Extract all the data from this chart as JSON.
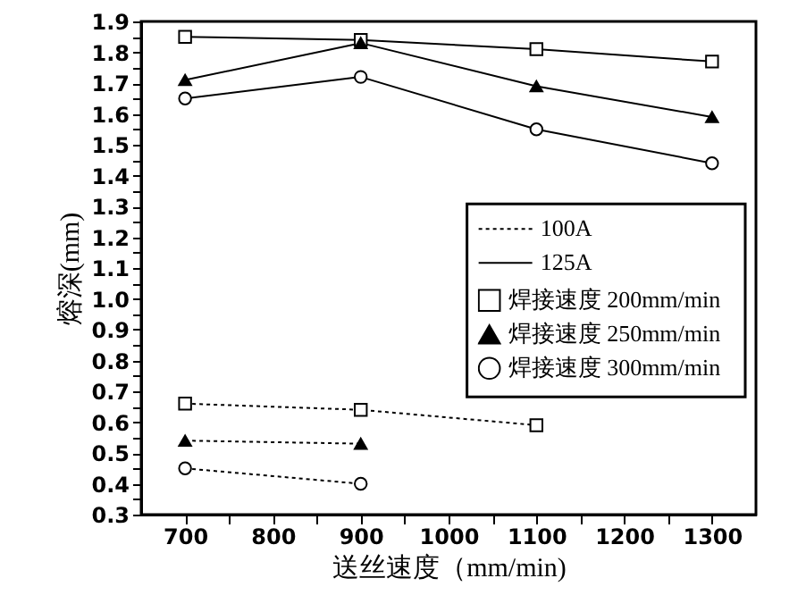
{
  "chart_data": {
    "type": "line",
    "xlabel": "送丝速度（mm/min)",
    "ylabel": "熔深(mm)",
    "xlim": [
      650,
      1350
    ],
    "ylim": [
      0.3,
      1.9
    ],
    "xticks": [
      700,
      {
        "value": 750,
        "label": null
      },
      800,
      {
        "value": 850,
        "label": null
      },
      900,
      {
        "value": 950,
        "label": null
      },
      1000,
      {
        "value": 1050,
        "label": null
      },
      1100,
      {
        "value": 1150,
        "label": null
      },
      1200,
      {
        "value": 1250,
        "label": null
      },
      1300
    ],
    "yticks": [
      {
        "value": 0.3,
        "label": "0.3"
      },
      {
        "value": 0.35,
        "label": null
      },
      {
        "value": 0.4,
        "label": "0.4"
      },
      {
        "value": 0.45,
        "label": null
      },
      {
        "value": 0.5,
        "label": "0.5"
      },
      {
        "value": 0.55,
        "label": null
      },
      {
        "value": 0.6,
        "label": "0.6"
      },
      {
        "value": 0.65,
        "label": null
      },
      {
        "value": 0.7,
        "label": "0.7"
      },
      {
        "value": 0.75,
        "label": null
      },
      {
        "value": 0.8,
        "label": "0.8"
      },
      {
        "value": 0.85,
        "label": null
      },
      {
        "value": 0.9,
        "label": "0.9"
      },
      {
        "value": 0.95,
        "label": null
      },
      {
        "value": 1.0,
        "label": "1.0"
      },
      {
        "value": 1.05,
        "label": null
      },
      {
        "value": 1.1,
        "label": "1.1"
      },
      {
        "value": 1.15,
        "label": null
      },
      {
        "value": 1.2,
        "label": "1.2"
      },
      {
        "value": 1.25,
        "label": null
      },
      {
        "value": 1.3,
        "label": "1.3"
      },
      {
        "value": 1.35,
        "label": null
      },
      {
        "value": 1.4,
        "label": "1.4"
      },
      {
        "value": 1.45,
        "label": null
      },
      {
        "value": 1.5,
        "label": "1.5"
      },
      {
        "value": 1.55,
        "label": null
      },
      {
        "value": 1.6,
        "label": "1.6"
      },
      {
        "value": 1.65,
        "label": null
      },
      {
        "value": 1.7,
        "label": "1.7"
      },
      {
        "value": 1.75,
        "label": null
      },
      {
        "value": 1.8,
        "label": "1.8"
      },
      {
        "value": 1.85,
        "label": null
      },
      {
        "value": 1.9,
        "label": "1.9"
      }
    ],
    "x": [
      700,
      900,
      1100,
      1300
    ],
    "annotations": [
      "100A",
      "125A"
    ],
    "legend": "right",
    "series": [
      {
        "name": "焊接速度 200mm/min",
        "color": "#000000",
        "line_style": "dotted",
        "marker": "square",
        "values": [
          0.66,
          0.64,
          0.59,
          null
        ]
      },
      {
        "name": "焊接速度 250mm/min",
        "color": "#000000",
        "line_style": "dotted",
        "marker": "triangle",
        "values": [
          0.54,
          0.53,
          null,
          null
        ]
      },
      {
        "name": "焊接速度 300mm/min",
        "color": "#000000",
        "line_style": "dotted",
        "marker": "circle",
        "values": [
          0.45,
          0.4,
          null,
          null
        ]
      },
      {
        "color": "#000000",
        "line_style": "solid",
        "marker": "square",
        "values": [
          1.85,
          1.84,
          1.81,
          1.77
        ]
      },
      {
        "color": "#000000",
        "line_style": "solid",
        "marker": "triangle",
        "values": [
          1.71,
          1.83,
          1.69,
          1.59
        ]
      },
      {
        "color": "#000000",
        "line_style": "solid",
        "marker": "circle",
        "values": [
          1.65,
          1.72,
          1.55,
          1.44
        ]
      }
    ]
  }
}
